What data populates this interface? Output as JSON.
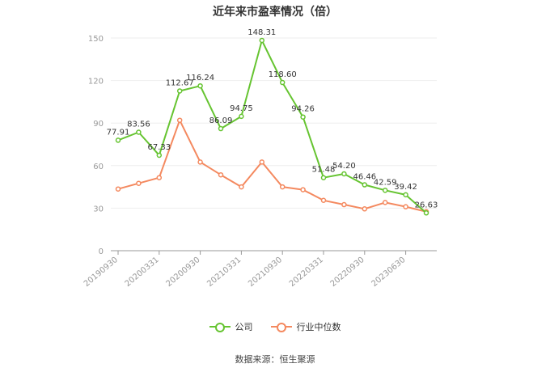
{
  "title": "近年来市盈率情况（倍）",
  "source": "数据来源：恒生聚源",
  "colors": {
    "company": "#66c431",
    "industry": "#f4895f",
    "grid": "#eeeeee",
    "axis": "#999999"
  },
  "legend": {
    "company": "公司",
    "industry": "行业中位数"
  },
  "chart_data": {
    "type": "line",
    "title": "近年来市盈率情况（倍）",
    "ylim": [
      0,
      150
    ],
    "yticks": [
      0,
      30,
      60,
      90,
      120,
      150
    ],
    "x_tick_labels": [
      "20190930",
      "20200331",
      "20200930",
      "20210331",
      "20210930",
      "20220331",
      "20220930",
      "20230630"
    ],
    "x_tick_positions": [
      0,
      2,
      4,
      6,
      8,
      10,
      12,
      14
    ],
    "grid": true,
    "legend_position": "bottom",
    "series": [
      {
        "name": "公司",
        "values": [
          77.91,
          83.56,
          67.33,
          112.67,
          116.24,
          86.09,
          94.75,
          148.31,
          118.6,
          94.26,
          51.48,
          54.2,
          46.46,
          42.59,
          39.42,
          26.63
        ],
        "labels": [
          "77.91",
          "83.56",
          "67.33",
          "112.67",
          "116.24",
          "86.09",
          "94.75",
          "148.31",
          "118.60",
          "94.26",
          "51.48",
          "54.20",
          "46.46",
          "42.59",
          "39.42",
          "26.63"
        ]
      },
      {
        "name": "行业中位数",
        "values": [
          43.5,
          47.5,
          51.5,
          92.0,
          62.5,
          53.5,
          45.0,
          62.5,
          45.0,
          43.0,
          35.5,
          32.5,
          29.5,
          34.0,
          31.0,
          27.5
        ]
      }
    ]
  }
}
